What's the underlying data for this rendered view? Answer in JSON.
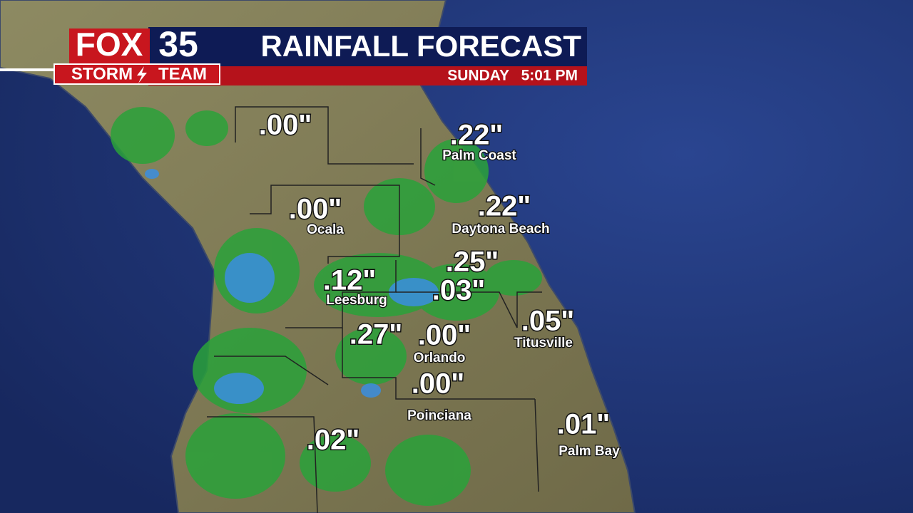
{
  "header": {
    "logo": {
      "network": "FOX",
      "channel": "35",
      "team_left": "STORM",
      "team_right": "TEAM"
    },
    "title": "RAINFALL FORECAST",
    "day": "SUNDAY",
    "time": "5:01 PM"
  },
  "locations": [
    {
      "amount": ".00\""
    },
    {
      "amount": ".22\"",
      "name": "Palm Coast"
    },
    {
      "amount": ".00\"",
      "name": "Ocala"
    },
    {
      "amount": ".22\"",
      "name": "Daytona Beach"
    },
    {
      "amount": ".25\""
    },
    {
      "amount": ".12\"",
      "name": "Leesburg"
    },
    {
      "amount": ".03\""
    },
    {
      "amount": ".05\"",
      "name": "Titusville"
    },
    {
      "amount": ".27\""
    },
    {
      "amount": ".00\"",
      "name": "Orlando"
    },
    {
      "amount": ".00\"",
      "name": "Poinciana"
    },
    {
      "amount": ".02\""
    },
    {
      "amount": ".01\"",
      "name": "Palm Bay"
    }
  ]
}
